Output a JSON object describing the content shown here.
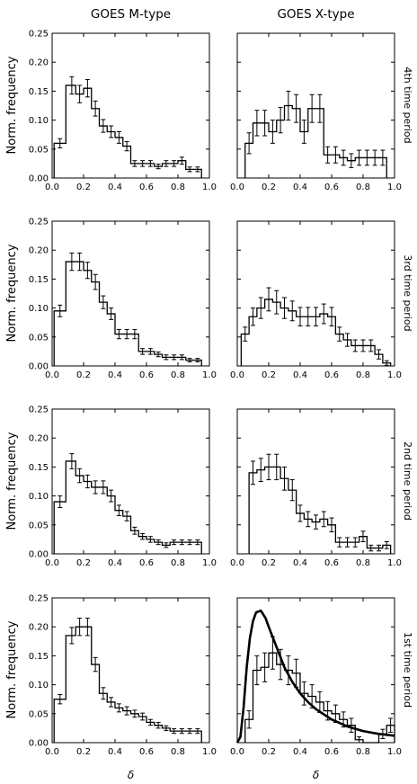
{
  "figure": {
    "col_titles": [
      "GOES M-type",
      "GOES X-type"
    ],
    "ylabel": "Norm. frequency",
    "xlabel": "δ",
    "row_labels": [
      "4th time period",
      "3rd time period",
      "2nd time period",
      "1st time period"
    ]
  },
  "chart_data": [
    {
      "type": "histogram",
      "panel": "GOES M-type, 4th time period",
      "bin_centers": [
        0.05,
        0.125,
        0.175,
        0.225,
        0.275,
        0.325,
        0.375,
        0.425,
        0.475,
        0.525,
        0.575,
        0.625,
        0.675,
        0.725,
        0.775,
        0.825,
        0.875,
        0.925
      ],
      "values": [
        0.06,
        0.16,
        0.145,
        0.155,
        0.12,
        0.09,
        0.08,
        0.07,
        0.055,
        0.025,
        0.025,
        0.025,
        0.02,
        0.025,
        0.025,
        0.03,
        0.015,
        0.015
      ],
      "errors": [
        0.008,
        0.015,
        0.015,
        0.015,
        0.013,
        0.011,
        0.01,
        0.01,
        0.008,
        0.005,
        0.005,
        0.005,
        0.004,
        0.005,
        0.005,
        0.006,
        0.004,
        0.004
      ],
      "xlim": [
        0.0,
        1.0
      ],
      "ylim": [
        0.0,
        0.25
      ],
      "xticks": [
        "0.0",
        "0.2",
        "0.4",
        "0.6",
        "0.8",
        "1.0"
      ],
      "yticks": [
        "0.00",
        "0.05",
        "0.10",
        "0.15",
        "0.20",
        "0.25"
      ]
    },
    {
      "type": "histogram",
      "panel": "GOES X-type, 4th time period",
      "bin_centers": [
        0.075,
        0.125,
        0.175,
        0.225,
        0.275,
        0.325,
        0.375,
        0.425,
        0.475,
        0.525,
        0.575,
        0.625,
        0.675,
        0.725,
        0.775,
        0.825,
        0.875,
        0.925
      ],
      "values": [
        0.06,
        0.095,
        0.095,
        0.08,
        0.1,
        0.125,
        0.12,
        0.08,
        0.12,
        0.12,
        0.04,
        0.04,
        0.035,
        0.03,
        0.035,
        0.035,
        0.035,
        0.035
      ],
      "errors": [
        0.018,
        0.022,
        0.022,
        0.02,
        0.022,
        0.025,
        0.024,
        0.02,
        0.024,
        0.024,
        0.014,
        0.014,
        0.013,
        0.012,
        0.013,
        0.013,
        0.013,
        0.013
      ],
      "xlim": [
        0.0,
        1.0
      ],
      "ylim": [
        0.0,
        0.25
      ],
      "xticks": [
        "0.0",
        "0.2",
        "0.4",
        "0.6",
        "0.8",
        "1.0"
      ]
    },
    {
      "type": "histogram",
      "panel": "GOES M-type, 3rd time period",
      "bin_centers": [
        0.05,
        0.125,
        0.175,
        0.225,
        0.275,
        0.325,
        0.375,
        0.425,
        0.475,
        0.525,
        0.575,
        0.625,
        0.675,
        0.725,
        0.775,
        0.825,
        0.875,
        0.925
      ],
      "values": [
        0.095,
        0.18,
        0.18,
        0.165,
        0.145,
        0.11,
        0.09,
        0.055,
        0.055,
        0.055,
        0.025,
        0.025,
        0.02,
        0.015,
        0.015,
        0.015,
        0.01,
        0.01
      ],
      "errors": [
        0.01,
        0.015,
        0.015,
        0.014,
        0.013,
        0.011,
        0.01,
        0.008,
        0.008,
        0.008,
        0.005,
        0.005,
        0.004,
        0.004,
        0.004,
        0.004,
        0.003,
        0.003
      ],
      "xlim": [
        0.0,
        1.0
      ],
      "ylim": [
        0.0,
        0.25
      ],
      "xticks": [
        "0.0",
        "0.2",
        "0.4",
        "0.6",
        "0.8",
        "1.0"
      ],
      "yticks": [
        "0.00",
        "0.05",
        "0.10",
        "0.15",
        "0.20",
        "0.25"
      ]
    },
    {
      "type": "histogram",
      "panel": "GOES X-type, 3rd time period",
      "bin_centers": [
        0.05,
        0.1,
        0.15,
        0.2,
        0.25,
        0.3,
        0.35,
        0.4,
        0.45,
        0.5,
        0.55,
        0.6,
        0.65,
        0.7,
        0.75,
        0.8,
        0.85,
        0.9,
        0.95
      ],
      "values": [
        0.055,
        0.085,
        0.1,
        0.115,
        0.11,
        0.1,
        0.095,
        0.085,
        0.085,
        0.085,
        0.09,
        0.085,
        0.055,
        0.045,
        0.035,
        0.035,
        0.035,
        0.02,
        0.005
      ],
      "errors": [
        0.012,
        0.015,
        0.018,
        0.02,
        0.02,
        0.018,
        0.017,
        0.016,
        0.016,
        0.016,
        0.017,
        0.016,
        0.012,
        0.011,
        0.01,
        0.01,
        0.01,
        0.008,
        0.004
      ],
      "xlim": [
        0.0,
        1.0
      ],
      "ylim": [
        0.0,
        0.25
      ],
      "xticks": [
        "0.0",
        "0.2",
        "0.4",
        "0.6",
        "0.8",
        "1.0"
      ]
    },
    {
      "type": "histogram",
      "panel": "GOES M-type, 2nd time period",
      "bin_centers": [
        0.05,
        0.125,
        0.175,
        0.225,
        0.275,
        0.325,
        0.375,
        0.425,
        0.475,
        0.525,
        0.575,
        0.625,
        0.675,
        0.725,
        0.775,
        0.825,
        0.875,
        0.925
      ],
      "values": [
        0.09,
        0.16,
        0.135,
        0.125,
        0.115,
        0.115,
        0.1,
        0.075,
        0.065,
        0.04,
        0.03,
        0.025,
        0.02,
        0.015,
        0.02,
        0.02,
        0.02,
        0.02
      ],
      "errors": [
        0.01,
        0.013,
        0.012,
        0.011,
        0.011,
        0.011,
        0.01,
        0.009,
        0.008,
        0.006,
        0.005,
        0.005,
        0.004,
        0.004,
        0.004,
        0.004,
        0.004,
        0.004
      ],
      "xlim": [
        0.0,
        1.0
      ],
      "ylim": [
        0.0,
        0.25
      ],
      "xticks": [
        "0.0",
        "0.2",
        "0.4",
        "0.6",
        "0.8",
        "1.0"
      ],
      "yticks": [
        "0.00",
        "0.05",
        "0.10",
        "0.15",
        "0.20",
        "0.25"
      ]
    },
    {
      "type": "histogram",
      "panel": "GOES X-type, 2nd time period",
      "bin_centers": [
        0.1,
        0.15,
        0.2,
        0.25,
        0.3,
        0.35,
        0.4,
        0.45,
        0.5,
        0.55,
        0.6,
        0.65,
        0.7,
        0.75,
        0.8,
        0.85,
        0.9,
        0.95
      ],
      "values": [
        0.14,
        0.145,
        0.15,
        0.15,
        0.13,
        0.11,
        0.07,
        0.06,
        0.055,
        0.06,
        0.05,
        0.02,
        0.02,
        0.02,
        0.03,
        0.01,
        0.01,
        0.015
      ],
      "errors": [
        0.02,
        0.02,
        0.022,
        0.022,
        0.02,
        0.018,
        0.014,
        0.013,
        0.012,
        0.013,
        0.012,
        0.008,
        0.008,
        0.008,
        0.009,
        0.005,
        0.005,
        0.006
      ],
      "xlim": [
        0.0,
        1.0
      ],
      "ylim": [
        0.0,
        0.25
      ],
      "xticks": [
        "0.0",
        "0.2",
        "0.4",
        "0.6",
        "0.8",
        "1.0"
      ]
    },
    {
      "type": "histogram",
      "panel": "GOES M-type, 1st time period",
      "bin_centers": [
        0.05,
        0.125,
        0.175,
        0.225,
        0.275,
        0.325,
        0.375,
        0.425,
        0.475,
        0.525,
        0.575,
        0.625,
        0.675,
        0.725,
        0.775,
        0.825,
        0.875,
        0.925
      ],
      "values": [
        0.075,
        0.185,
        0.2,
        0.2,
        0.135,
        0.085,
        0.07,
        0.06,
        0.055,
        0.05,
        0.045,
        0.035,
        0.03,
        0.025,
        0.02,
        0.02,
        0.02,
        0.02
      ],
      "errors": [
        0.008,
        0.014,
        0.015,
        0.015,
        0.012,
        0.01,
        0.008,
        0.007,
        0.007,
        0.006,
        0.006,
        0.005,
        0.005,
        0.004,
        0.004,
        0.004,
        0.004,
        0.004
      ],
      "xlim": [
        0.0,
        1.0
      ],
      "ylim": [
        0.0,
        0.25
      ],
      "xticks": [
        "0.0",
        "0.2",
        "0.4",
        "0.6",
        "0.8",
        "1.0"
      ],
      "yticks": [
        "0.00",
        "0.05",
        "0.10",
        "0.15",
        "0.20",
        "0.25"
      ]
    },
    {
      "type": "histogram",
      "panel": "GOES X-type, 1st time period",
      "bin_centers": [
        0.075,
        0.125,
        0.175,
        0.225,
        0.275,
        0.325,
        0.375,
        0.425,
        0.475,
        0.525,
        0.575,
        0.625,
        0.675,
        0.725,
        0.775,
        0.825,
        0.875,
        0.925,
        0.975
      ],
      "values": [
        0.04,
        0.125,
        0.13,
        0.155,
        0.135,
        0.125,
        0.12,
        0.085,
        0.08,
        0.07,
        0.055,
        0.05,
        0.04,
        0.03,
        0.005,
        0.0,
        0.0,
        0.015,
        0.03
      ],
      "errors": [
        0.015,
        0.025,
        0.025,
        0.028,
        0.026,
        0.025,
        0.024,
        0.02,
        0.02,
        0.018,
        0.016,
        0.015,
        0.013,
        0.012,
        0.005,
        0.0,
        0.0,
        0.008,
        0.012
      ],
      "curve": {
        "x": [
          0.0,
          0.02,
          0.04,
          0.06,
          0.08,
          0.1,
          0.12,
          0.15,
          0.18,
          0.2,
          0.25,
          0.3,
          0.35,
          0.4,
          0.45,
          0.5,
          0.6,
          0.7,
          0.8,
          0.9,
          1.0
        ],
        "y": [
          0.0,
          0.01,
          0.06,
          0.13,
          0.18,
          0.21,
          0.225,
          0.228,
          0.215,
          0.2,
          0.165,
          0.13,
          0.105,
          0.085,
          0.07,
          0.058,
          0.04,
          0.028,
          0.02,
          0.015,
          0.012
        ]
      },
      "xlim": [
        0.0,
        1.0
      ],
      "ylim": [
        0.0,
        0.25
      ],
      "xticks": [
        "0.0",
        "0.2",
        "0.4",
        "0.6",
        "0.8",
        "1.0"
      ]
    }
  ]
}
